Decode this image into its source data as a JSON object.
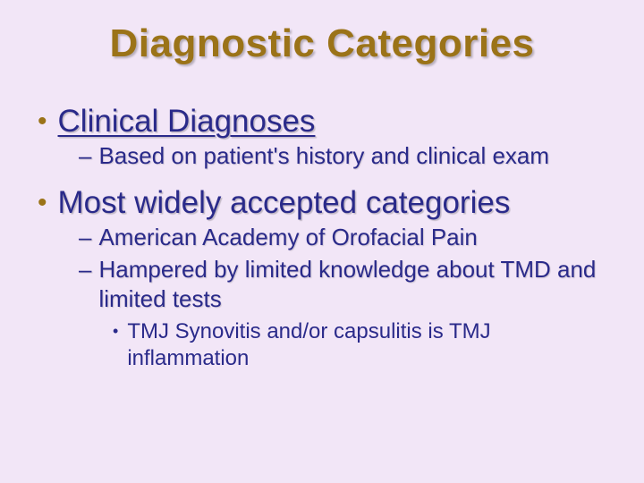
{
  "slide": {
    "background_color": "#f2e6f7",
    "title": {
      "text": "Diagnostic Categories",
      "color": "#9b7318",
      "fontsize": 44,
      "fontweight": "bold",
      "align": "center",
      "shadow": true
    },
    "bullets": [
      {
        "level": 1,
        "marker": "•",
        "marker_color": "#9b7318",
        "text": "Clinical Diagnoses",
        "color": "#2a2a8a",
        "fontsize": 35,
        "underline": true
      },
      {
        "level": 2,
        "marker": "–",
        "text": "Based on patient's history and clinical exam",
        "color": "#2a2a8a",
        "fontsize": 26
      },
      {
        "level": 1,
        "marker": "•",
        "marker_color": "#9b7318",
        "text": "Most widely accepted categories",
        "color": "#2a2a8a",
        "fontsize": 35,
        "underline": false
      },
      {
        "level": 2,
        "marker": "–",
        "text": "American Academy of Orofacial Pain",
        "color": "#2a2a8a",
        "fontsize": 26
      },
      {
        "level": 2,
        "marker": "–",
        "text": "Hampered by limited knowledge about TMD and limited tests",
        "color": "#2a2a8a",
        "fontsize": 26
      },
      {
        "level": 3,
        "marker": "•",
        "text": "TMJ Synovitis and/or capsulitis is TMJ inflammation",
        "color": "#2a2a8a",
        "fontsize": 24
      }
    ]
  }
}
